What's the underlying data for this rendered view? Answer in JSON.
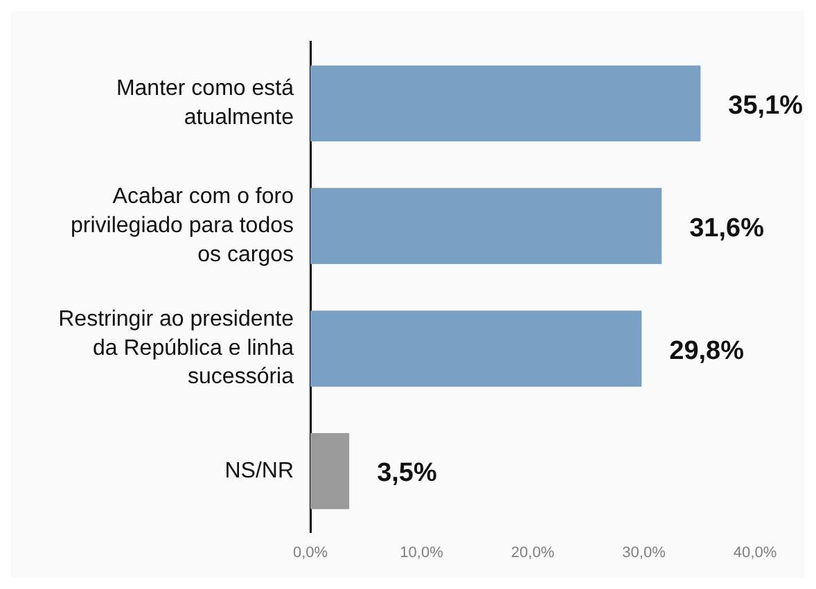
{
  "chart_data": {
    "type": "bar",
    "orientation": "horizontal",
    "categories": [
      "Manter como está atualmente",
      "Acabar com o foro privilegiado para todos os cargos",
      "Restringir ao presidente da República e linha sucessória",
      "NS/NR"
    ],
    "values": [
      35.1,
      31.6,
      29.8,
      3.5
    ],
    "colors": [
      "#7aa0c4",
      "#7aa0c4",
      "#7aa0c4",
      "#9b9b9b"
    ],
    "value_labels": [
      "35,1%",
      "31,6%",
      "29,8%",
      "3,5%"
    ],
    "xlim": [
      0,
      40
    ],
    "xticks": [
      {
        "value": 0,
        "label": "0,0%"
      },
      {
        "value": 10,
        "label": "10,0%"
      },
      {
        "value": 20,
        "label": "20,0%"
      },
      {
        "value": 30,
        "label": "30,0%"
      },
      {
        "value": 40,
        "label": "40,0%"
      }
    ],
    "grid": false,
    "legend": false
  }
}
